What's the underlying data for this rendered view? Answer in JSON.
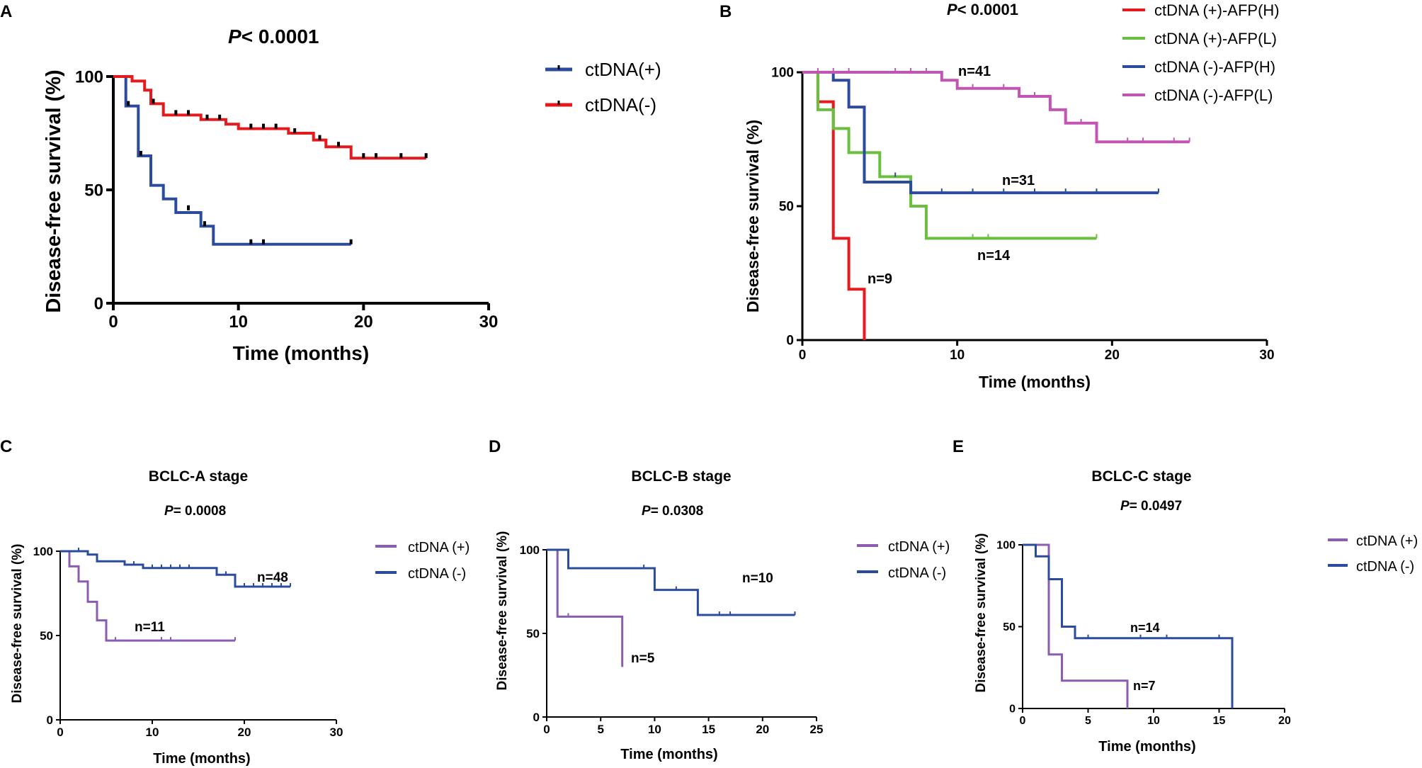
{
  "colors": {
    "red": "#e41a1c",
    "green": "#6abf3f",
    "blue": "#2b4c9e",
    "magenta": "#c454b4",
    "purple": "#8b5cb0",
    "axis": "#000000"
  },
  "chart_data": [
    {
      "panel": "A",
      "type": "line",
      "kind": "kaplan-meier",
      "title": "",
      "pvalue_prefix": "P",
      "pvalue_text": "< 0.0001",
      "xlabel": "Time (months)",
      "ylabel": "Disease-free survival (%)",
      "xlim": [
        0,
        30
      ],
      "ylim": [
        0,
        100
      ],
      "xticks": [
        0,
        10,
        20,
        30
      ],
      "yticks": [
        0,
        50,
        100
      ],
      "legend_position": "top-right",
      "series": [
        {
          "name": "ctDNA(+)",
          "color_key": "blue",
          "steps": [
            [
              0,
              100
            ],
            [
              1,
              100
            ],
            [
              1,
              87
            ],
            [
              2,
              87
            ],
            [
              2,
              65
            ],
            [
              3,
              65
            ],
            [
              3,
              52
            ],
            [
              4,
              52
            ],
            [
              4,
              46
            ],
            [
              5,
              46
            ],
            [
              5,
              40
            ],
            [
              7,
              40
            ],
            [
              7,
              34
            ],
            [
              8,
              34
            ],
            [
              8,
              26
            ],
            [
              19,
              26
            ]
          ],
          "censors": [
            [
              1.2,
              87
            ],
            [
              2.2,
              65
            ],
            [
              6,
              41
            ],
            [
              7.3,
              34
            ],
            [
              11,
              26
            ],
            [
              12,
              26
            ],
            [
              19,
              26
            ]
          ],
          "label": ""
        },
        {
          "name": "ctDNA(-)",
          "color_key": "red",
          "steps": [
            [
              0,
              100
            ],
            [
              1.5,
              100
            ],
            [
              1.5,
              98
            ],
            [
              2.5,
              98
            ],
            [
              2.5,
              94
            ],
            [
              3,
              94
            ],
            [
              3,
              88
            ],
            [
              4,
              88
            ],
            [
              4,
              83
            ],
            [
              7,
              83
            ],
            [
              7,
              81
            ],
            [
              9,
              81
            ],
            [
              9,
              79
            ],
            [
              10,
              79
            ],
            [
              10,
              77
            ],
            [
              14,
              77
            ],
            [
              14,
              75
            ],
            [
              16,
              75
            ],
            [
              16,
              72
            ],
            [
              17,
              72
            ],
            [
              17,
              69
            ],
            [
              19,
              69
            ],
            [
              19,
              64
            ],
            [
              25,
              64
            ]
          ],
          "censors": [
            [
              3.2,
              88
            ],
            [
              5,
              83
            ],
            [
              6,
              83
            ],
            [
              7.5,
              81
            ],
            [
              8.5,
              81
            ],
            [
              11,
              77
            ],
            [
              12,
              77
            ],
            [
              13,
              77
            ],
            [
              14.5,
              75
            ],
            [
              16.5,
              72
            ],
            [
              18,
              69
            ],
            [
              20,
              64
            ],
            [
              21,
              64
            ],
            [
              23,
              64
            ],
            [
              25,
              64
            ]
          ],
          "label": ""
        }
      ],
      "annotations": []
    },
    {
      "panel": "B",
      "type": "line",
      "kind": "kaplan-meier",
      "title": "",
      "pvalue_prefix": "P",
      "pvalue_text": "< 0.0001",
      "xlabel": "Time (months)",
      "ylabel": "Disease-free survival (%)",
      "xlim": [
        0,
        30
      ],
      "ylim": [
        0,
        100
      ],
      "xticks": [
        0,
        10,
        20,
        30
      ],
      "yticks": [
        0,
        50,
        100
      ],
      "legend_position": "top-right",
      "series": [
        {
          "name": "ctDNA (+)-AFP(H)",
          "color_key": "red",
          "steps": [
            [
              0,
              100
            ],
            [
              1,
              100
            ],
            [
              1,
              89
            ],
            [
              2,
              89
            ],
            [
              2,
              38
            ],
            [
              3,
              38
            ],
            [
              3,
              19
            ],
            [
              4,
              19
            ],
            [
              4,
              0
            ]
          ],
          "censors": [],
          "label": "n=9"
        },
        {
          "name": "ctDNA (+)-AFP(L)",
          "color_key": "green",
          "steps": [
            [
              0,
              100
            ],
            [
              1,
              100
            ],
            [
              1,
              86
            ],
            [
              2,
              86
            ],
            [
              2,
              79
            ],
            [
              3,
              79
            ],
            [
              3,
              70
            ],
            [
              5,
              70
            ],
            [
              5,
              61
            ],
            [
              7,
              61
            ],
            [
              7,
              50
            ],
            [
              8,
              50
            ],
            [
              8,
              38
            ],
            [
              19,
              38
            ]
          ],
          "censors": [
            [
              11,
              38
            ],
            [
              12,
              38
            ],
            [
              19,
              38
            ]
          ],
          "label": "n=14"
        },
        {
          "name": "ctDNA (-)-AFP(H)",
          "color_key": "blue",
          "steps": [
            [
              0,
              100
            ],
            [
              2,
              100
            ],
            [
              2,
              97
            ],
            [
              3,
              97
            ],
            [
              3,
              87
            ],
            [
              4,
              87
            ],
            [
              4,
              70
            ],
            [
              4,
              70
            ],
            [
              4,
              59
            ],
            [
              7,
              59
            ],
            [
              7,
              55
            ],
            [
              23,
              55
            ]
          ],
          "censors": [
            [
              6,
              61
            ],
            [
              9,
              55
            ],
            [
              11,
              55
            ],
            [
              13,
              55
            ],
            [
              15,
              55
            ],
            [
              17,
              55
            ],
            [
              19,
              55
            ],
            [
              23,
              55
            ]
          ],
          "label": "n=31"
        },
        {
          "name": "ctDNA (-)-AFP(L)",
          "color_key": "magenta",
          "steps": [
            [
              0,
              100
            ],
            [
              9,
              100
            ],
            [
              9,
              97
            ],
            [
              10,
              97
            ],
            [
              10,
              94
            ],
            [
              14,
              94
            ],
            [
              14,
              91
            ],
            [
              16,
              91
            ],
            [
              16,
              86
            ],
            [
              17,
              86
            ],
            [
              17,
              81
            ],
            [
              19,
              81
            ],
            [
              19,
              74
            ],
            [
              25,
              74
            ]
          ],
          "censors": [
            [
              1,
              100
            ],
            [
              2,
              100
            ],
            [
              3,
              100
            ],
            [
              6,
              100
            ],
            [
              7,
              100
            ],
            [
              8,
              100
            ],
            [
              11,
              94
            ],
            [
              13,
              94
            ],
            [
              15,
              91
            ],
            [
              18,
              81
            ],
            [
              21,
              74
            ],
            [
              22,
              74
            ],
            [
              24,
              74
            ],
            [
              25,
              74
            ]
          ],
          "label": "n=41"
        }
      ],
      "annotations": []
    },
    {
      "panel": "C",
      "type": "line",
      "kind": "kaplan-meier",
      "title": "BCLC-A stage",
      "pvalue_prefix": "P",
      "pvalue_text": "= 0.0008",
      "xlabel": "Time (months)",
      "ylabel": "Disease-free survival (%)",
      "xlim": [
        0,
        30
      ],
      "ylim": [
        0,
        100
      ],
      "xticks": [
        0,
        10,
        20,
        30
      ],
      "yticks": [
        0,
        50,
        100
      ],
      "legend_position": "top-right",
      "series": [
        {
          "name": "ctDNA (+)",
          "color_key": "purple",
          "steps": [
            [
              0,
              100
            ],
            [
              1,
              100
            ],
            [
              1,
              91
            ],
            [
              2,
              91
            ],
            [
              2,
              82
            ],
            [
              3,
              82
            ],
            [
              3,
              70
            ],
            [
              4,
              70
            ],
            [
              4,
              59
            ],
            [
              5,
              59
            ],
            [
              5,
              47
            ],
            [
              19,
              47
            ]
          ],
          "censors": [
            [
              6,
              47
            ],
            [
              11,
              47
            ],
            [
              12,
              47
            ],
            [
              19,
              47
            ]
          ],
          "label": "n=11"
        },
        {
          "name": "ctDNA (-)",
          "color_key": "blue",
          "steps": [
            [
              0,
              100
            ],
            [
              3,
              100
            ],
            [
              3,
              98
            ],
            [
              4,
              98
            ],
            [
              4,
              94
            ],
            [
              7,
              94
            ],
            [
              7,
              92
            ],
            [
              9,
              92
            ],
            [
              9,
              90
            ],
            [
              17,
              90
            ],
            [
              17,
              86
            ],
            [
              19,
              86
            ],
            [
              19,
              79
            ],
            [
              25,
              79
            ]
          ],
          "censors": [
            [
              2,
              100
            ],
            [
              8,
              92
            ],
            [
              10,
              90
            ],
            [
              11,
              90
            ],
            [
              12,
              90
            ],
            [
              13,
              90
            ],
            [
              14,
              90
            ],
            [
              18,
              86
            ],
            [
              20,
              79
            ],
            [
              21,
              79
            ],
            [
              22,
              79
            ],
            [
              23,
              79
            ],
            [
              24,
              79
            ],
            [
              25,
              79
            ]
          ],
          "label": "n=48"
        }
      ],
      "annotations": []
    },
    {
      "panel": "D",
      "type": "line",
      "kind": "kaplan-meier",
      "title": "BCLC-B stage",
      "pvalue_prefix": "P",
      "pvalue_text": "= 0.0308",
      "xlabel": "Time (months)",
      "ylabel": "Disease-free survival (%)",
      "xlim": [
        0,
        25
      ],
      "ylim": [
        0,
        100
      ],
      "xticks": [
        0,
        5,
        10,
        15,
        20,
        25
      ],
      "yticks": [
        0,
        50,
        100
      ],
      "legend_position": "top-right",
      "series": [
        {
          "name": "ctDNA (+)",
          "color_key": "purple",
          "steps": [
            [
              0,
              100
            ],
            [
              1,
              100
            ],
            [
              1,
              60
            ],
            [
              7,
              60
            ],
            [
              7,
              30
            ]
          ],
          "censors": [
            [
              2,
              60
            ],
            [
              7,
              30
            ]
          ],
          "label": "n=5"
        },
        {
          "name": "ctDNA (-)",
          "color_key": "blue",
          "steps": [
            [
              0,
              100
            ],
            [
              1,
              100
            ],
            [
              1,
              100
            ],
            [
              2,
              100
            ],
            [
              2,
              89
            ],
            [
              10,
              89
            ],
            [
              10,
              76
            ],
            [
              14,
              76
            ],
            [
              14,
              61
            ],
            [
              23,
              61
            ]
          ],
          "censors": [
            [
              9,
              89
            ],
            [
              12,
              76
            ],
            [
              16,
              61
            ],
            [
              17,
              61
            ],
            [
              23,
              61
            ]
          ],
          "label": "n=10"
        }
      ],
      "annotations": []
    },
    {
      "panel": "E",
      "type": "line",
      "kind": "kaplan-meier",
      "title": "BCLC-C stage",
      "pvalue_prefix": "P",
      "pvalue_text": "= 0.0497",
      "xlabel": "Time (months)",
      "ylabel": "Disease-free survival (%)",
      "xlim": [
        0,
        20
      ],
      "ylim": [
        0,
        100
      ],
      "xticks": [
        0,
        5,
        10,
        15,
        20
      ],
      "yticks": [
        0,
        50,
        100
      ],
      "legend_position": "top-right",
      "series": [
        {
          "name": "ctDNA (+)",
          "color_key": "purple",
          "steps": [
            [
              0,
              100
            ],
            [
              2,
              100
            ],
            [
              2,
              33
            ],
            [
              3,
              33
            ],
            [
              3,
              17
            ],
            [
              8,
              17
            ],
            [
              8,
              0
            ]
          ],
          "censors": [],
          "label": "n=7"
        },
        {
          "name": "ctDNA (-)",
          "color_key": "blue",
          "steps": [
            [
              0,
              100
            ],
            [
              1,
              100
            ],
            [
              1,
              93
            ],
            [
              2,
              93
            ],
            [
              2,
              79
            ],
            [
              3,
              79
            ],
            [
              3,
              50
            ],
            [
              4,
              50
            ],
            [
              4,
              43
            ],
            [
              16,
              43
            ],
            [
              16,
              0
            ]
          ],
          "censors": [
            [
              5,
              43
            ],
            [
              9,
              43
            ],
            [
              11,
              43
            ],
            [
              15,
              43
            ]
          ],
          "label": "n=14"
        }
      ],
      "annotations": []
    }
  ]
}
